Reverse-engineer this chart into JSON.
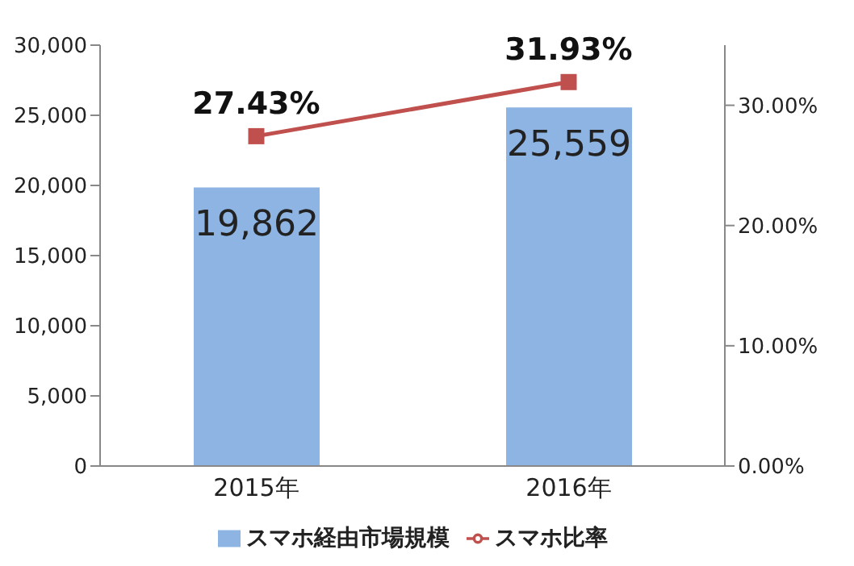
{
  "chart_data": {
    "type": "bar",
    "categories": [
      "2015年",
      "2016年"
    ],
    "series": [
      {
        "name": "スマホ経由市場規模",
        "color": "#8db4e2",
        "values": [
          19862,
          25559
        ],
        "value_labels": [
          "19,862",
          "25,559"
        ]
      },
      {
        "name": "スマホ比率",
        "type": "line",
        "axis": "y2",
        "color": "#c0504d",
        "values": [
          27.43,
          31.93
        ],
        "value_labels": [
          "27.43%",
          "31.93%"
        ]
      }
    ],
    "ylim": [
      0,
      30000
    ],
    "yticks": [
      {
        "value": 0,
        "label": "0"
      },
      {
        "value": 5000,
        "label": "5,000"
      },
      {
        "value": 10000,
        "label": "10,000"
      },
      {
        "value": 15000,
        "label": "15,000"
      },
      {
        "value": 20000,
        "label": "20,000"
      },
      {
        "value": 25000,
        "label": "25,000"
      },
      {
        "value": 30000,
        "label": "30,000"
      }
    ],
    "y2lim": [
      0,
      35
    ],
    "y2ticks": [
      {
        "value": 0,
        "label": "0.00%"
      },
      {
        "value": 10,
        "label": "10.00%"
      },
      {
        "value": 20,
        "label": "20.00%"
      },
      {
        "value": 30,
        "label": "30.00%"
      }
    ],
    "legend": "bottom",
    "marker": "square",
    "grid": false
  }
}
